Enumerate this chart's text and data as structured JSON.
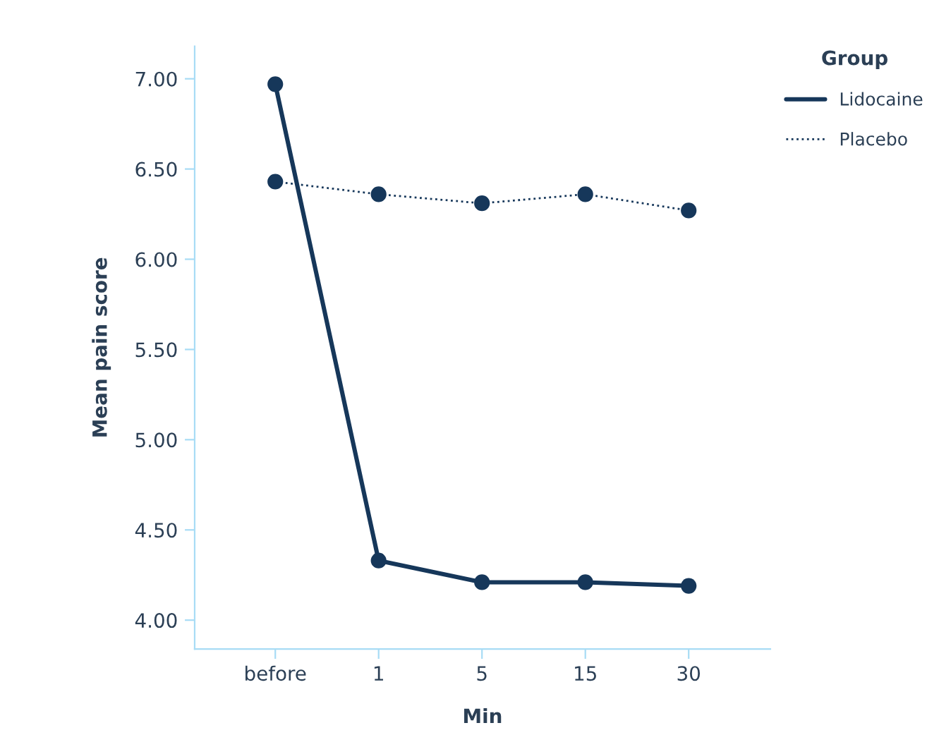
{
  "chart_data": {
    "type": "line",
    "xlabel": "Min",
    "ylabel": "Mean pain score",
    "legend_title": "Group",
    "categories": [
      "before",
      "1",
      "5",
      "15",
      "30"
    ],
    "series": [
      {
        "name": "Lidocaine",
        "color": "#16375a",
        "line_style": "solid",
        "values": [
          6.97,
          4.33,
          4.21,
          4.21,
          4.19
        ]
      },
      {
        "name": "Placebo",
        "color": "#16375a",
        "line_style": "dotted",
        "values": [
          6.43,
          6.36,
          6.31,
          6.36,
          6.27
        ]
      }
    ],
    "ylim": [
      3.84,
      7.18
    ],
    "yticks": [
      {
        "value": 4,
        "label": "4.00"
      },
      {
        "value": 4.5,
        "label": "4.50"
      },
      {
        "value": 5,
        "label": "5.00"
      },
      {
        "value": 5.5,
        "label": "5.50"
      },
      {
        "value": 6,
        "label": "6.00"
      },
      {
        "value": 6.5,
        "label": "6.50"
      },
      {
        "value": 7,
        "label": "7.00"
      }
    ],
    "marker": "circle",
    "grid": false,
    "legend": "top right"
  }
}
